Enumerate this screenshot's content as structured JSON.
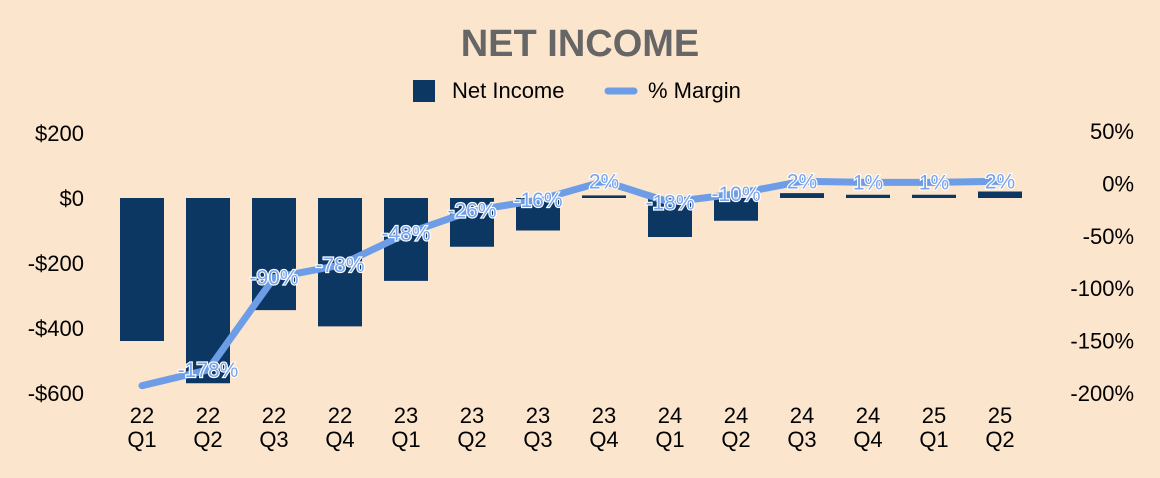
{
  "chart_data": {
    "type": "bar",
    "title": "NET INCOME",
    "legend_position": "top-center",
    "categories": [
      [
        "22",
        "Q1"
      ],
      [
        "22",
        "Q2"
      ],
      [
        "22",
        "Q3"
      ],
      [
        "22",
        "Q4"
      ],
      [
        "23",
        "Q1"
      ],
      [
        "23",
        "Q2"
      ],
      [
        "23",
        "Q3"
      ],
      [
        "23",
        "Q4"
      ],
      [
        "24",
        "Q1"
      ],
      [
        "24",
        "Q2"
      ],
      [
        "24",
        "Q3"
      ],
      [
        "24",
        "Q4"
      ],
      [
        "25",
        "Q1"
      ],
      [
        "25",
        "Q2"
      ]
    ],
    "series": [
      {
        "name": "Net Income",
        "type": "bar",
        "axis": "left",
        "color": "#0d3763",
        "values": [
          -440,
          -570,
          -345,
          -395,
          -255,
          -150,
          -100,
          8,
          -120,
          -70,
          15,
          10,
          10,
          20
        ]
      },
      {
        "name": "% Margin",
        "type": "line",
        "axis": "right",
        "color": "#6e9de8",
        "values": [
          -193,
          -178,
          -90,
          -78,
          -48,
          -26,
          -16,
          2,
          -18,
          -10,
          2,
          1,
          1,
          2
        ],
        "labels": [
          "",
          "-178%",
          "-90%",
          "-78%",
          "-48%",
          "-26%",
          "-16%",
          "2%",
          "-18%",
          "-10%",
          "2%",
          "1%",
          "1%",
          "2%"
        ]
      }
    ],
    "y_left": {
      "ylim": [
        -600,
        200
      ],
      "ticks": [
        200,
        0,
        -200,
        -400,
        -600
      ],
      "tick_labels": [
        "$200",
        "$0",
        "-$200",
        "-$400",
        "-$600"
      ]
    },
    "y_right": {
      "ylim": [
        -200,
        50
      ],
      "ticks": [
        50,
        0,
        -50,
        -100,
        -150,
        -200
      ],
      "tick_labels": [
        "50%",
        "0%",
        "-50%",
        "-100%",
        "-150%",
        "-200%"
      ]
    },
    "grid": false
  }
}
